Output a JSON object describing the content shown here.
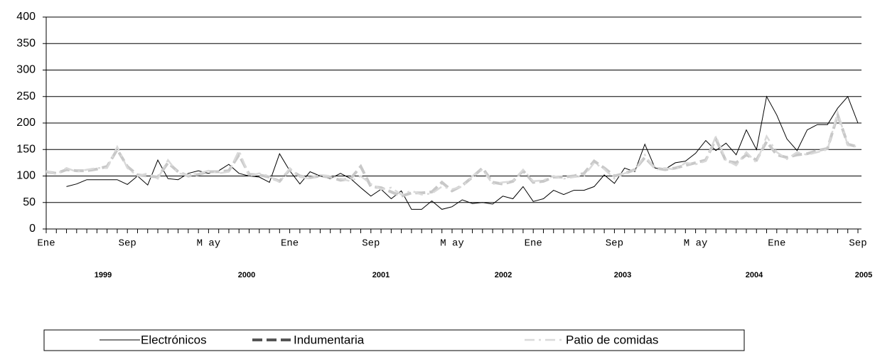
{
  "chart_data": {
    "type": "line",
    "categories": [
      "Ene",
      null,
      null,
      null,
      null,
      null,
      null,
      null,
      "Sep",
      null,
      null,
      null,
      null,
      null,
      null,
      null,
      "M ay",
      null,
      null,
      null,
      null,
      null,
      null,
      null,
      "Ene",
      null,
      null,
      null,
      null,
      null,
      null,
      null,
      "Sep",
      null,
      null,
      null,
      null,
      null,
      null,
      null,
      "M ay",
      null,
      null,
      null,
      null,
      null,
      null,
      null,
      "Ene",
      null,
      null,
      null,
      null,
      null,
      null,
      null,
      "Sep",
      null,
      null,
      null,
      null,
      null,
      null,
      null,
      "M ay",
      null,
      null,
      null,
      null,
      null,
      null,
      null,
      "Ene",
      null,
      null,
      null,
      null,
      null,
      null,
      null,
      "Sep"
    ],
    "series": [
      {
        "name": "Electrónicos",
        "color": "#000000",
        "values": [
          null,
          null,
          80,
          85,
          93,
          93,
          93,
          93,
          84,
          100,
          83,
          130,
          95,
          93,
          105,
          110,
          105,
          110,
          122,
          105,
          100,
          98,
          88,
          142,
          110,
          85,
          108,
          100,
          95,
          105,
          95,
          78,
          62,
          75,
          57,
          72,
          37,
          37,
          53,
          37,
          42,
          55,
          48,
          50,
          47,
          62,
          57,
          80,
          52,
          57,
          73,
          65,
          73,
          73,
          80,
          102,
          86,
          115,
          108,
          160,
          115,
          113,
          125,
          128,
          143,
          167,
          148,
          162,
          140,
          187,
          150,
          250,
          215,
          170,
          148,
          187,
          197,
          197,
          228,
          250,
          200
        ]
      },
      {
        "name": "Indumentaria",
        "color": "#c8c8c8",
        "values": [
          108,
          105,
          112,
          110,
          110,
          113,
          118,
          150,
          118,
          102,
          100,
          98,
          125,
          108,
          100,
          103,
          108,
          108,
          110,
          140,
          103,
          102,
          98,
          90,
          112,
          100,
          97,
          100,
          98,
          92,
          95,
          118,
          80,
          78,
          70,
          62,
          68,
          68,
          70,
          88,
          72,
          82,
          98,
          115,
          88,
          85,
          90,
          110,
          88,
          90,
          98,
          98,
          100,
          105,
          128,
          115,
          100,
          105,
          112,
          135,
          115,
          112,
          115,
          120,
          125,
          130,
          170,
          128,
          125,
          140,
          130,
          165,
          140,
          135,
          140,
          142,
          148,
          152,
          215,
          160,
          155
        ]
      },
      {
        "name": "Patio de comidas",
        "color": "#d9d9d9",
        "values": [
          110,
          103,
          115,
          108,
          112,
          115,
          115,
          155,
          115,
          100,
          105,
          95,
          130,
          105,
          102,
          105,
          110,
          105,
          108,
          148,
          100,
          105,
          100,
          88,
          115,
          98,
          95,
          102,
          100,
          95,
          90,
          100,
          85,
          75,
          78,
          65,
          72,
          65,
          67,
          80,
          75,
          80,
          100,
          112,
          85,
          88,
          90,
          112,
          90,
          92,
          100,
          95,
          98,
          100,
          125,
          113,
          95,
          105,
          110,
          140,
          112,
          115,
          112,
          125,
          122,
          128,
          175,
          130,
          120,
          145,
          125,
          175,
          145,
          132,
          145,
          140,
          145,
          150,
          220,
          158,
          155
        ]
      }
    ],
    "annotations": [
      "1999",
      "2000",
      "2001",
      "2002",
      "2003",
      "2004",
      "2005"
    ],
    "ylim": [
      0,
      400
    ],
    "yticks": [
      0,
      50,
      100,
      150,
      200,
      250,
      300,
      350,
      400
    ],
    "grid": true
  }
}
